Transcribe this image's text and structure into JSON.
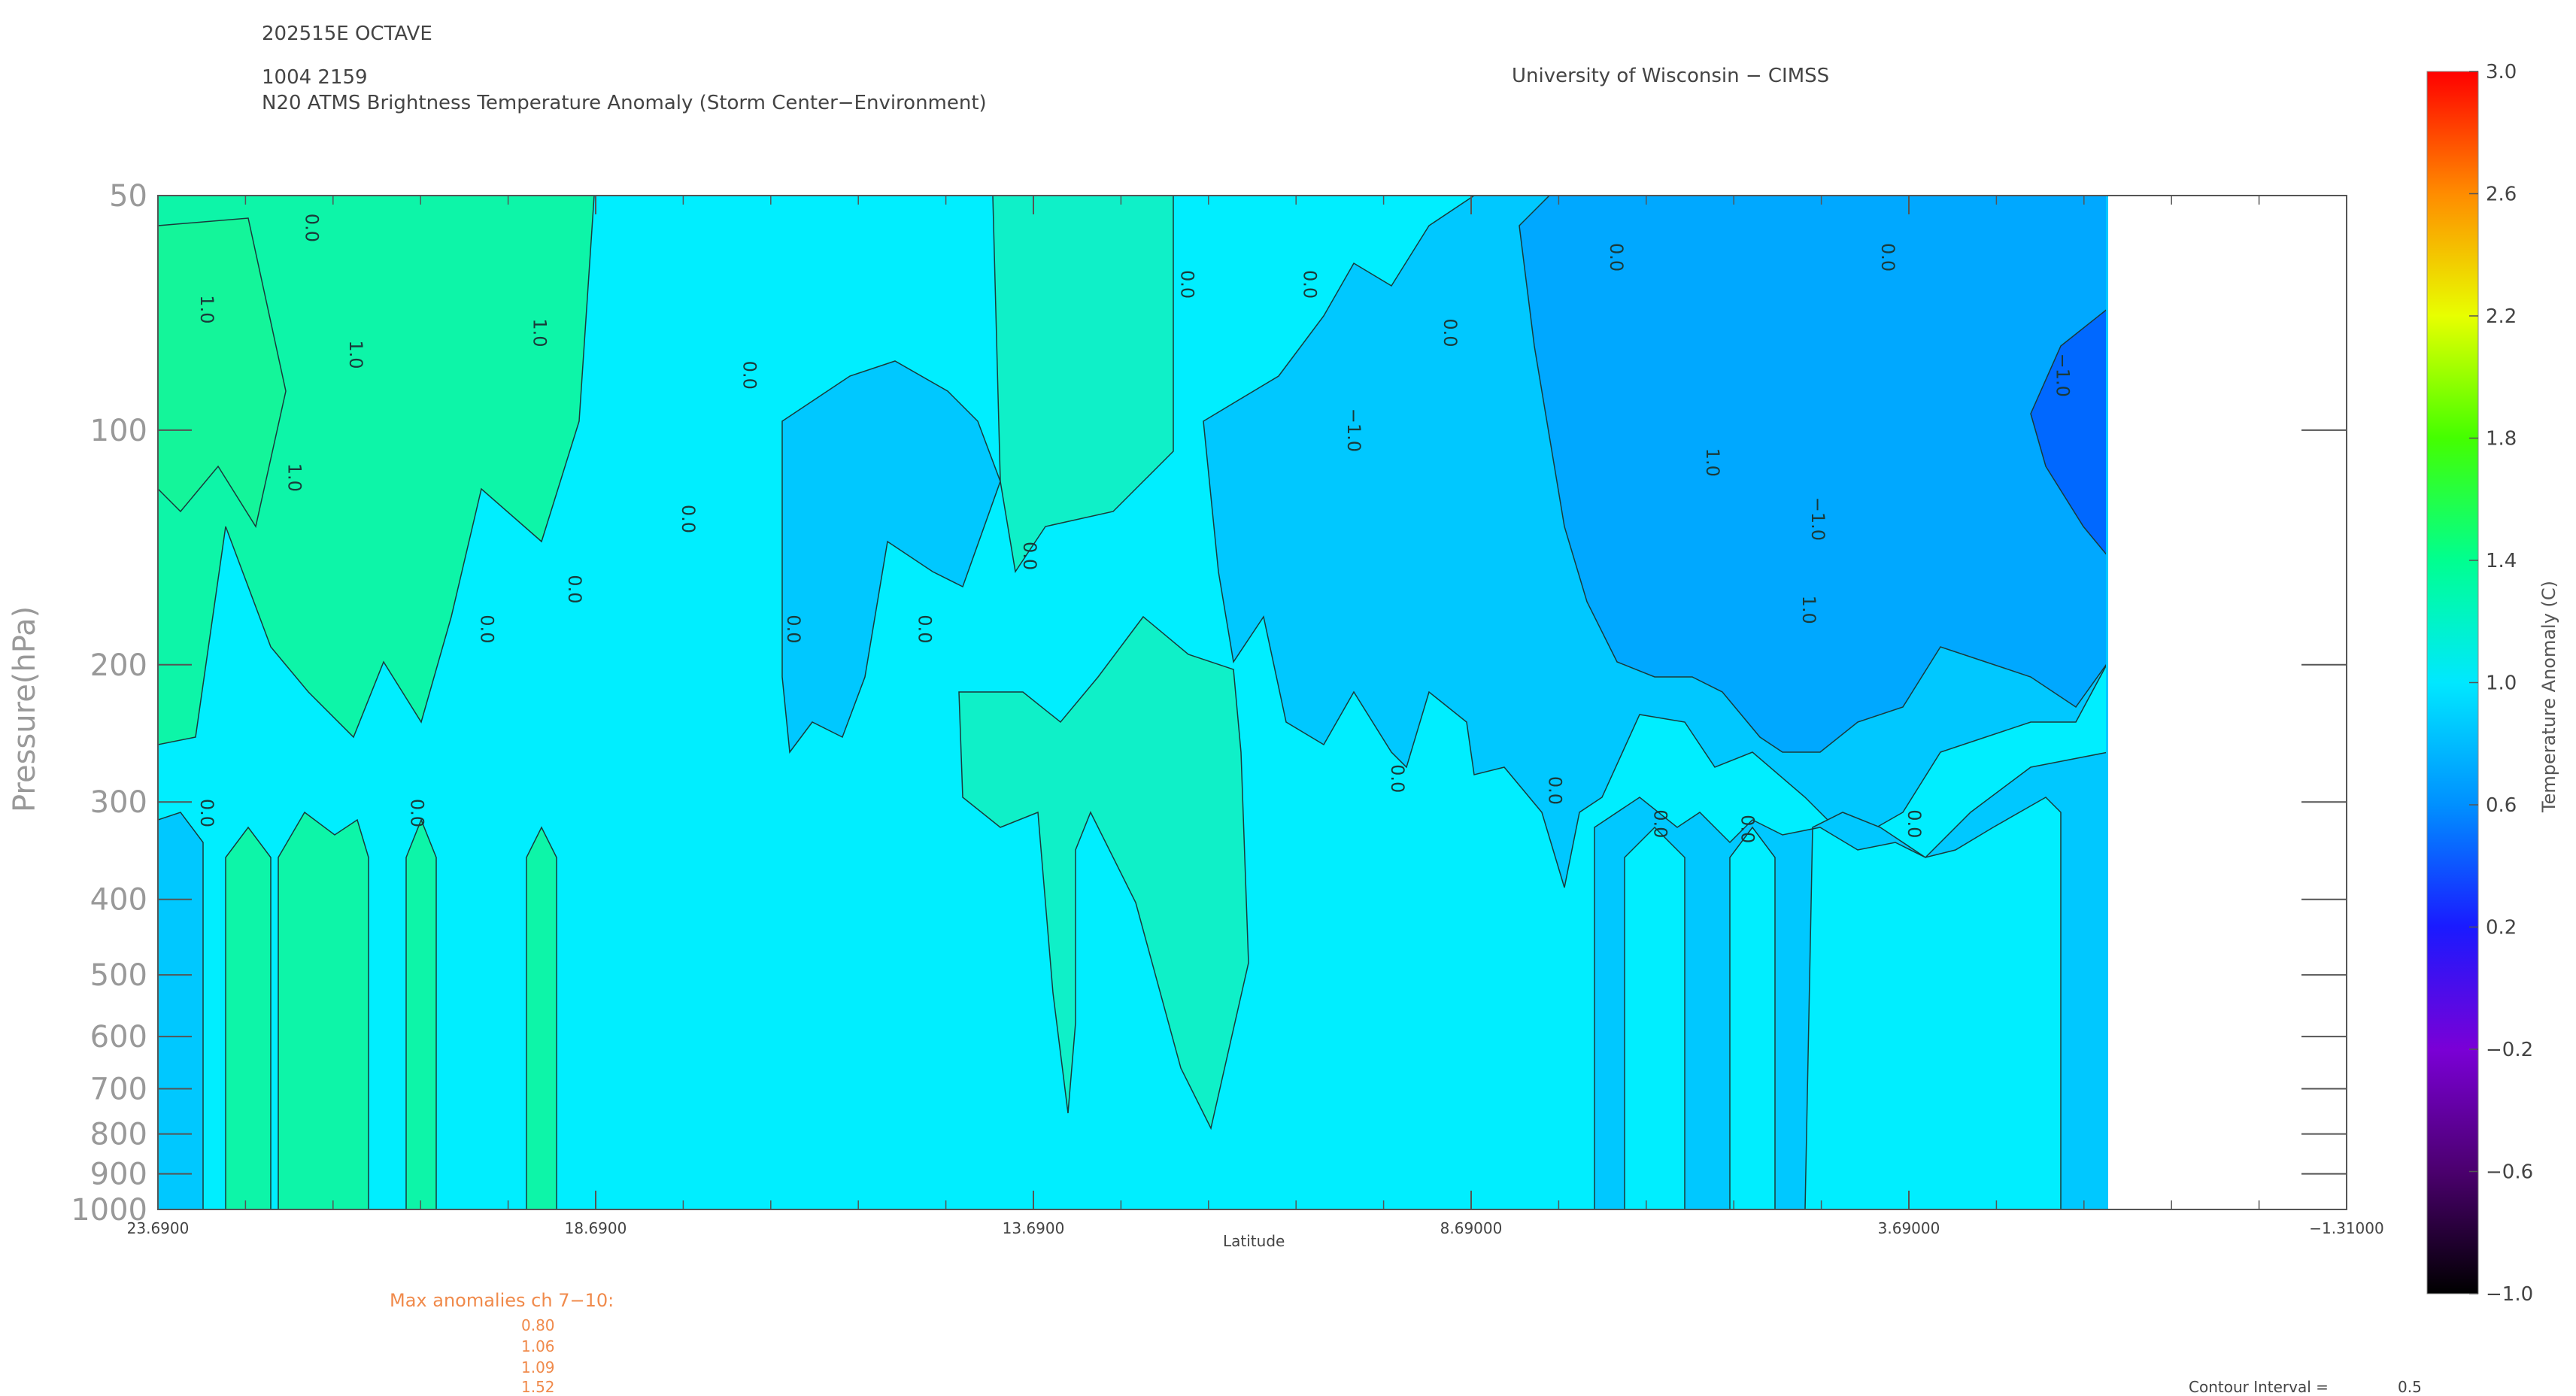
{
  "header": {
    "storm": "202515E OCTAVE",
    "datetime": "1004 2159",
    "product": "N20 ATMS Brightness Temperature Anomaly (Storm Center−Environment)",
    "institution": "University of Wisconsin − CIMSS"
  },
  "footer": {
    "max_label": "Max anomalies ch 7−10:",
    "max_values": [
      "0.80",
      "1.06",
      "1.09",
      "1.52"
    ],
    "contour_label": "Contour Interval =",
    "contour_value": "0.5"
  },
  "chart_data": {
    "type": "heatmap",
    "title": "N20 ATMS Brightness Temperature Anomaly (Storm Center−Environment)",
    "xlabel": "Latitude",
    "ylabel": "Pressure(hPa)",
    "x_ticks": [
      "23.6900",
      "18.6900",
      "13.6900",
      "8.69000",
      "3.69000",
      "−1.31000"
    ],
    "x_tick_values": [
      23.69,
      18.69,
      13.69,
      8.69,
      3.69,
      -1.31
    ],
    "xlim": [
      23.69,
      -1.31
    ],
    "data_extent_x": [
      23.69,
      1.44
    ],
    "y_ticks": [
      "50",
      "100",
      "200",
      "300",
      "400",
      "500",
      "600",
      "700",
      "800",
      "900",
      "1000"
    ],
    "y_tick_values": [
      50,
      100,
      200,
      300,
      400,
      500,
      600,
      700,
      800,
      900,
      1000
    ],
    "ylim": [
      1000,
      50
    ],
    "y_scale": "log",
    "colorbar": {
      "label": "Temperature Anomaly (C)",
      "ticks": [
        "3.0",
        "2.6",
        "2.2",
        "1.8",
        "1.4",
        "1.0",
        "0.6",
        "0.2",
        "−0.2",
        "−0.6",
        "−1.0"
      ],
      "range": [
        -1.0,
        3.0
      ]
    },
    "contour_interval": 0.5,
    "contour_labels": [
      "1.0",
      "0.0",
      "−1.0"
    ],
    "fill_colors": {
      "green_band": "#0df5a8",
      "light_green": "#0ff0c8",
      "cyan": "#00eeff",
      "light_blue": "#00c8ff",
      "medium_blue": "#00a8ff",
      "deep_blue": "#0068ff"
    },
    "regions": [
      {
        "value": 0.7,
        "lat": [
          23.69,
          1.44
        ],
        "p": [
          50,
          1000
        ],
        "desc": "background"
      },
      {
        "value": 0.9,
        "lat": [
          23.69,
          18.5
        ],
        "p": [
          50,
          250
        ]
      },
      {
        "value": 0.9,
        "lat": [
          15.1,
          12.7
        ],
        "p": [
          50,
          120
        ]
      },
      {
        "value": 0.9,
        "lat": [
          14.6,
          10.7
        ],
        "p": [
          200,
          700
        ]
      },
      {
        "value": 0.9,
        "lat": [
          22.1,
          18.9
        ],
        "p": [
          300,
          1000
        ]
      },
      {
        "value": 0.5,
        "lat": [
          17.2,
          15.1
        ],
        "p": [
          80,
          280
        ]
      },
      {
        "value": 0.5,
        "lat": [
          11.8,
          1.44
        ],
        "p": [
          50,
          300
        ]
      },
      {
        "value": 0.5,
        "lat": [
          7.5,
          1.44
        ],
        "p": [
          300,
          1000
        ]
      },
      {
        "value": 0.3,
        "lat": [
          7.5,
          1.44
        ],
        "p": [
          50,
          250
        ]
      },
      {
        "value": 0.1,
        "lat": [
          2.5,
          1.44
        ],
        "p": [
          70,
          150
        ]
      }
    ]
  }
}
